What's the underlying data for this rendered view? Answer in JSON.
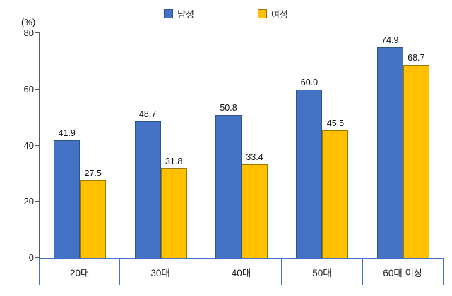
{
  "chart_data": {
    "type": "bar",
    "title": "",
    "ylabel": "(%)",
    "categories": [
      "20대",
      "30대",
      "40대",
      "50대",
      "60대 이상"
    ],
    "series": [
      {
        "id": "male",
        "name": "남성",
        "color": "#4472C4",
        "border_color": "#2F528F",
        "values": [
          41.9,
          48.7,
          50.8,
          60.0,
          74.9
        ]
      },
      {
        "id": "female",
        "name": "여성",
        "color": "#FFC000",
        "border_color": "#9C7A00",
        "values": [
          27.5,
          31.8,
          33.4,
          45.5,
          68.7
        ]
      }
    ],
    "ylim": [
      0,
      80
    ],
    "yticks": [
      0,
      20,
      40,
      60,
      80
    ],
    "grid": false,
    "legend_position": "top",
    "axis_color": "#4472C4",
    "y_axis_color": "#595959"
  }
}
